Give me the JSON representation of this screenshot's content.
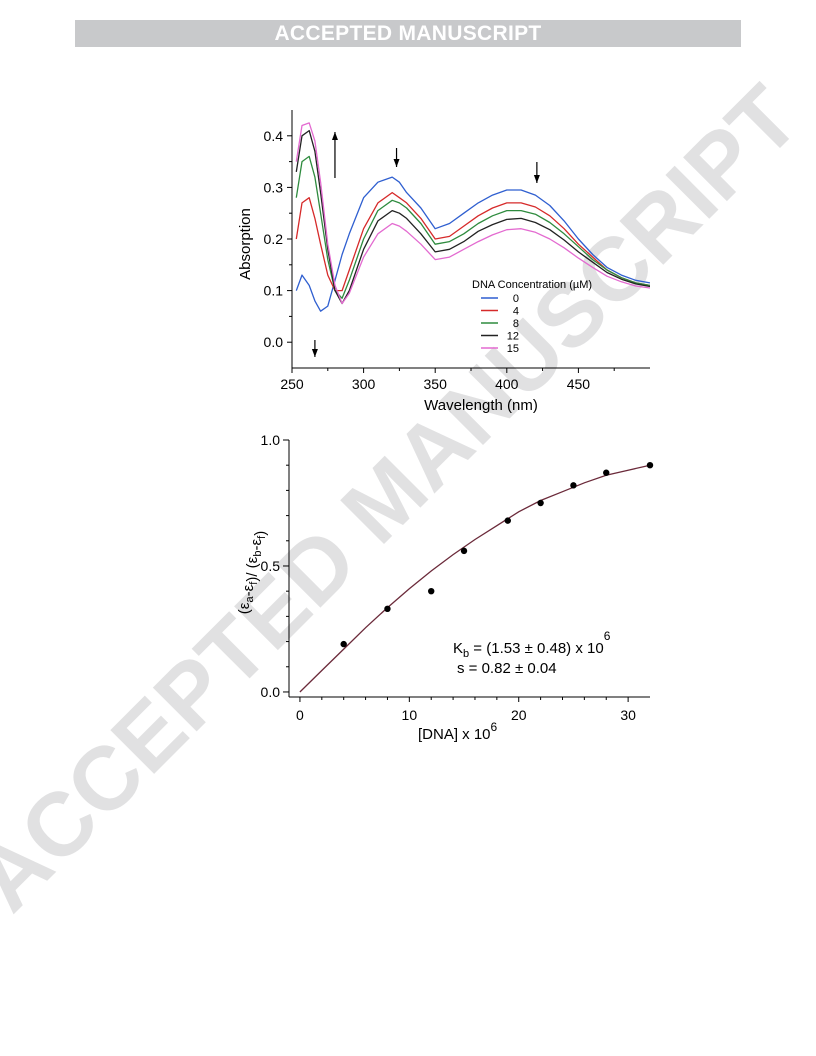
{
  "banner": "ACCEPTED MANUSCRIPT",
  "watermark": "ACCEPTED MANUSCRIPT",
  "chart_data": [
    {
      "type": "line",
      "xlabel": "Wavelength (nm)",
      "ylabel": "Absorption",
      "xlim": [
        250,
        500
      ],
      "ylim": [
        -0.05,
        0.45
      ],
      "xticks": [
        250,
        300,
        350,
        400,
        450
      ],
      "yticks": [
        0.0,
        0.1,
        0.2,
        0.3,
        0.4
      ],
      "legend": {
        "title": "DNA Concentration (µM)",
        "placement": "bottom-right"
      },
      "x": [
        253,
        257,
        262,
        266,
        270,
        275,
        280,
        285,
        290,
        300,
        310,
        320,
        325,
        330,
        340,
        350,
        360,
        370,
        380,
        390,
        400,
        410,
        420,
        430,
        440,
        450,
        460,
        470,
        480,
        490,
        500
      ],
      "series": [
        {
          "name": "0",
          "color": "#2f5fd0",
          "values": [
            0.1,
            0.13,
            0.11,
            0.08,
            0.06,
            0.07,
            0.12,
            0.17,
            0.21,
            0.28,
            0.31,
            0.32,
            0.31,
            0.29,
            0.26,
            0.22,
            0.23,
            0.25,
            0.27,
            0.285,
            0.295,
            0.295,
            0.285,
            0.265,
            0.235,
            0.2,
            0.17,
            0.145,
            0.13,
            0.12,
            0.115
          ]
        },
        {
          "name": "4",
          "color": "#d62a2a",
          "values": [
            0.2,
            0.27,
            0.28,
            0.24,
            0.19,
            0.13,
            0.1,
            0.1,
            0.14,
            0.22,
            0.27,
            0.29,
            0.28,
            0.27,
            0.24,
            0.2,
            0.205,
            0.225,
            0.245,
            0.26,
            0.27,
            0.27,
            0.262,
            0.245,
            0.22,
            0.19,
            0.165,
            0.14,
            0.125,
            0.115,
            0.11
          ]
        },
        {
          "name": "8",
          "color": "#2e8b3e",
          "values": [
            0.28,
            0.35,
            0.36,
            0.32,
            0.25,
            0.16,
            0.1,
            0.085,
            0.12,
            0.2,
            0.255,
            0.275,
            0.27,
            0.26,
            0.23,
            0.19,
            0.195,
            0.21,
            0.23,
            0.245,
            0.255,
            0.255,
            0.248,
            0.232,
            0.21,
            0.185,
            0.16,
            0.14,
            0.125,
            0.115,
            0.11
          ]
        },
        {
          "name": "12",
          "color": "#222222",
          "values": [
            0.33,
            0.4,
            0.41,
            0.37,
            0.29,
            0.18,
            0.1,
            0.075,
            0.1,
            0.18,
            0.235,
            0.255,
            0.25,
            0.24,
            0.21,
            0.175,
            0.18,
            0.195,
            0.215,
            0.228,
            0.238,
            0.24,
            0.232,
            0.218,
            0.198,
            0.175,
            0.155,
            0.135,
            0.122,
            0.113,
            0.108
          ]
        },
        {
          "name": "15",
          "color": "#e36ad0",
          "values": [
            0.35,
            0.42,
            0.425,
            0.39,
            0.31,
            0.19,
            0.11,
            0.075,
            0.095,
            0.165,
            0.21,
            0.23,
            0.225,
            0.215,
            0.19,
            0.16,
            0.165,
            0.18,
            0.195,
            0.208,
            0.218,
            0.22,
            0.213,
            0.2,
            0.183,
            0.163,
            0.145,
            0.128,
            0.117,
            0.109,
            0.105
          ]
        }
      ]
    },
    {
      "type": "scatter",
      "xlabel": "[DNA] x 10^6",
      "ylabel": "(εa-εf)/ (εb-εf)",
      "xlim": [
        -1,
        32
      ],
      "ylim": [
        -0.02,
        1.0
      ],
      "xticks": [
        0,
        10,
        20,
        30
      ],
      "yticks": [
        0.0,
        0.5,
        1.0
      ],
      "x": [
        4,
        8,
        12,
        15,
        19,
        22,
        25,
        28,
        32
      ],
      "y": [
        0.19,
        0.33,
        0.4,
        0.56,
        0.68,
        0.75,
        0.82,
        0.87,
        0.9
      ],
      "fit": {
        "x": [
          0,
          2,
          4,
          6,
          8,
          10,
          12,
          14,
          16,
          18,
          20,
          22,
          24,
          26,
          28,
          30,
          32
        ],
        "y": [
          0.0,
          0.085,
          0.17,
          0.255,
          0.335,
          0.41,
          0.48,
          0.545,
          0.605,
          0.66,
          0.715,
          0.76,
          0.795,
          0.83,
          0.86,
          0.88,
          0.9
        ],
        "color": "#6b2a3a"
      },
      "annotations": [
        {
          "id": "kb",
          "prefix": "K",
          "sub": "b",
          "text": " = (1.53 ± 0.48) x 10",
          "sup": "6"
        },
        {
          "id": "s",
          "text": "s  = 0.82 ± 0.04"
        }
      ]
    }
  ]
}
